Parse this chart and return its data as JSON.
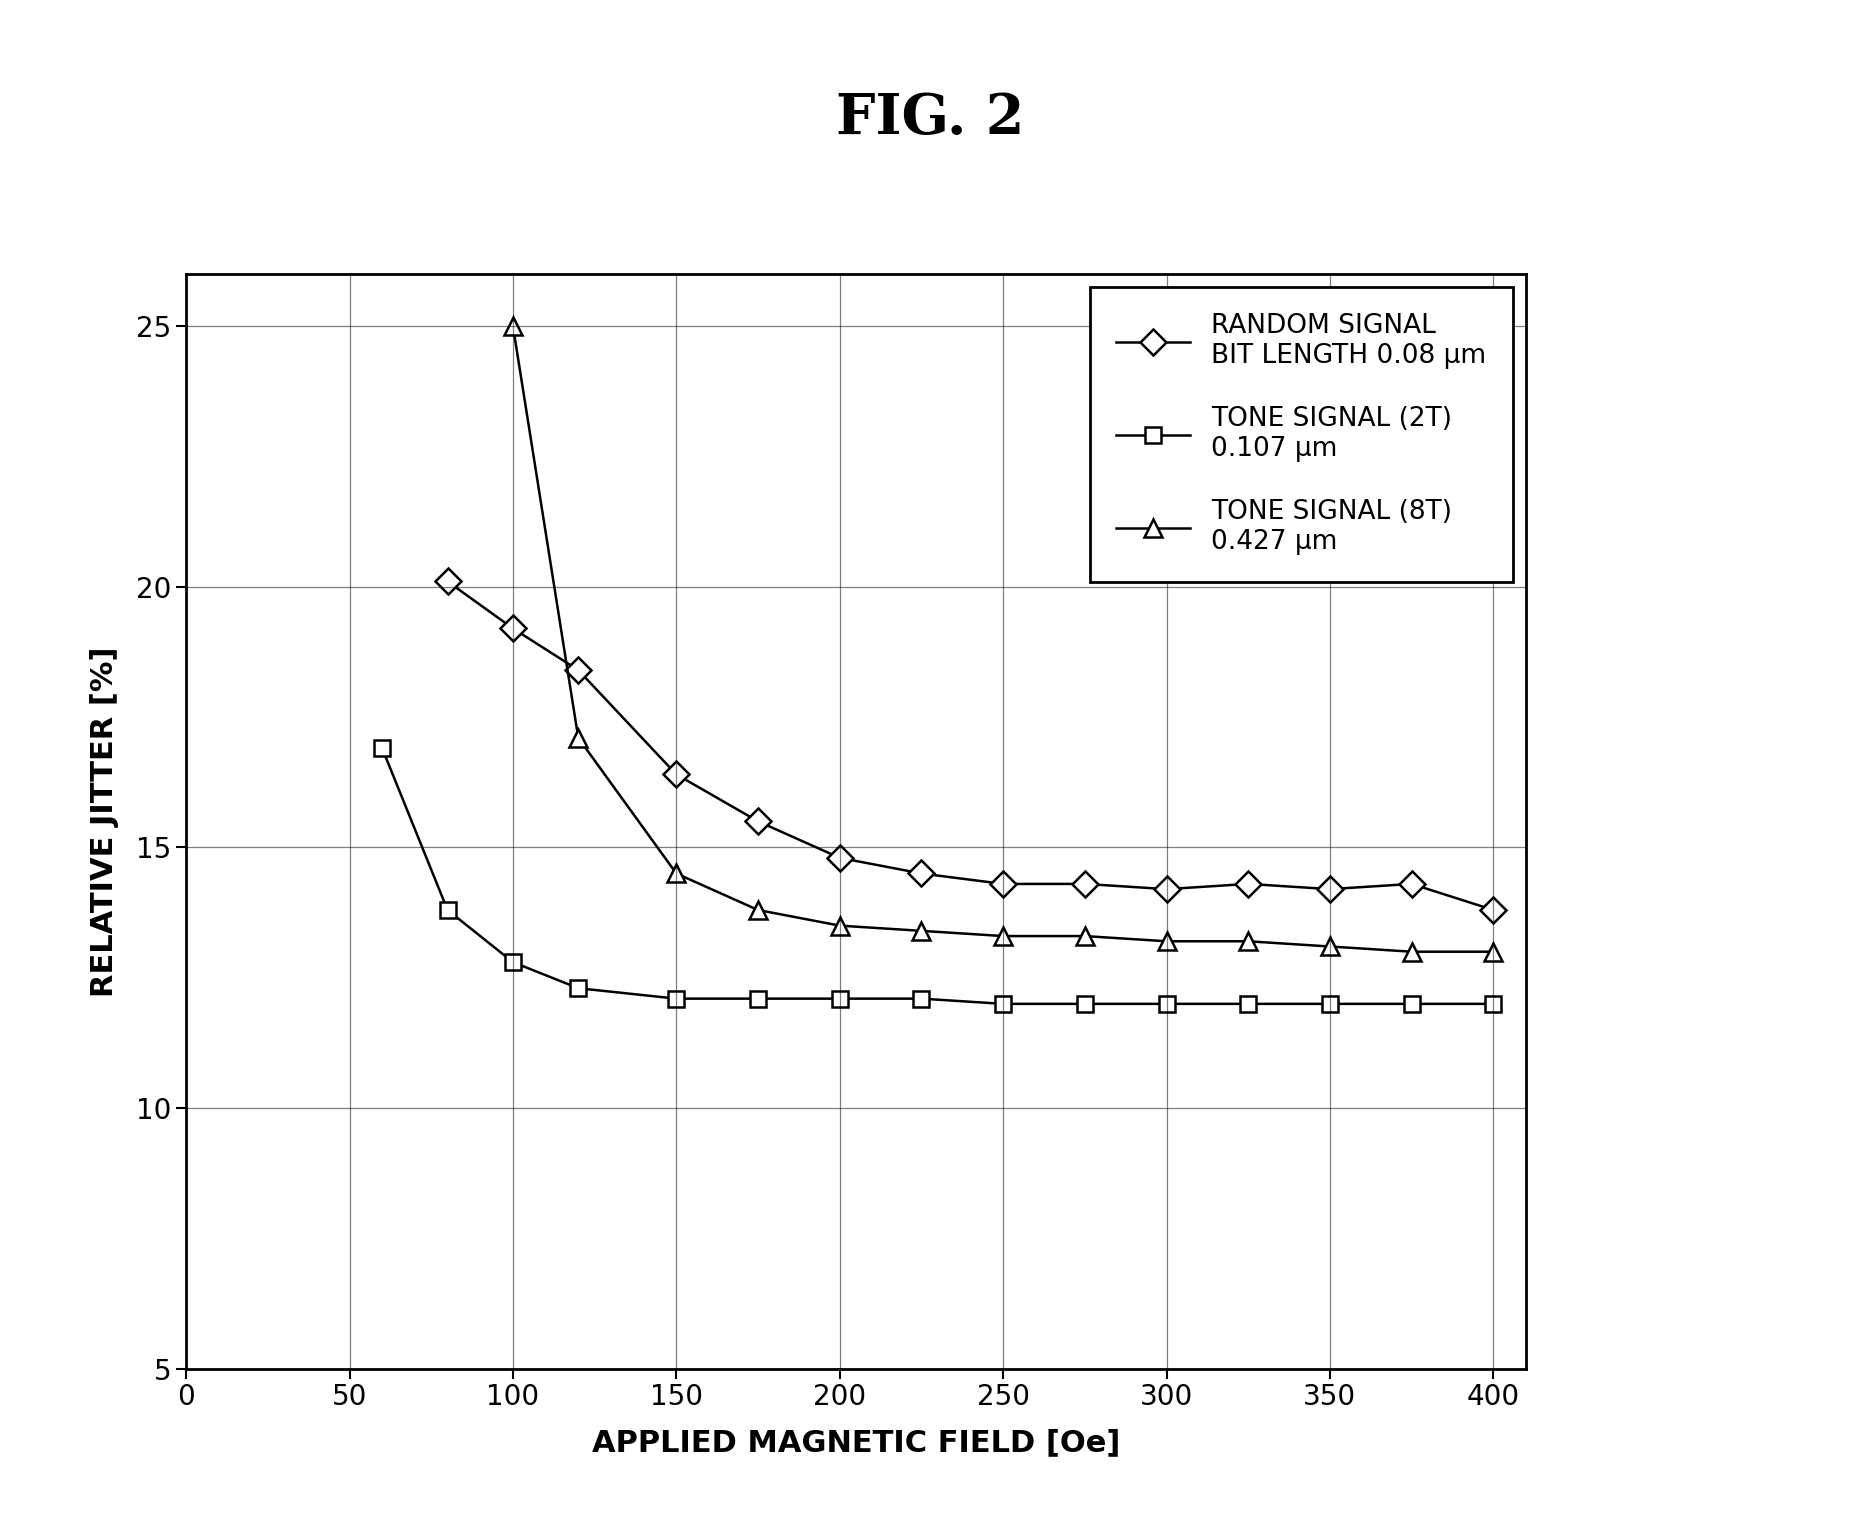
{
  "title": "FIG. 2",
  "xlabel": "APPLIED MAGNETIC FIELD [Oe]",
  "ylabel": "RELATIVE JITTER [%]",
  "xlim": [
    0,
    410
  ],
  "ylim": [
    5,
    26
  ],
  "xticks": [
    0,
    50,
    100,
    150,
    200,
    250,
    300,
    350,
    400
  ],
  "yticks": [
    5,
    10,
    15,
    20,
    25
  ],
  "background_color": "#ffffff",
  "series": [
    {
      "label": "RANDOM SIGNAL\nBIT LENGTH 0.08 μm",
      "marker": "D",
      "x": [
        80,
        100,
        120,
        150,
        175,
        200,
        225,
        250,
        275,
        300,
        325,
        350,
        375,
        400
      ],
      "y": [
        20.1,
        19.2,
        18.4,
        16.4,
        15.5,
        14.8,
        14.5,
        14.3,
        14.3,
        14.2,
        14.3,
        14.2,
        14.3,
        13.8
      ]
    },
    {
      "label": "TONE SIGNAL (2T)\n0.107 μm",
      "marker": "s",
      "x": [
        60,
        80,
        100,
        120,
        150,
        175,
        200,
        225,
        250,
        275,
        300,
        325,
        350,
        375,
        400
      ],
      "y": [
        16.9,
        13.8,
        12.8,
        12.3,
        12.1,
        12.1,
        12.1,
        12.1,
        12.0,
        12.0,
        12.0,
        12.0,
        12.0,
        12.0,
        12.0
      ]
    },
    {
      "label": "TONE SIGNAL (8T)\n0.427 μm",
      "marker": "^",
      "x": [
        100,
        120,
        150,
        175,
        200,
        225,
        250,
        275,
        300,
        325,
        350,
        375,
        400
      ],
      "y": [
        25.0,
        17.1,
        14.5,
        13.8,
        13.5,
        13.4,
        13.3,
        13.3,
        13.2,
        13.2,
        13.1,
        13.0,
        13.0
      ]
    }
  ],
  "line_color": "#000000",
  "linewidth": 1.8,
  "title_fontsize": 40,
  "axis_label_fontsize": 22,
  "tick_fontsize": 20,
  "legend_fontsize": 19
}
